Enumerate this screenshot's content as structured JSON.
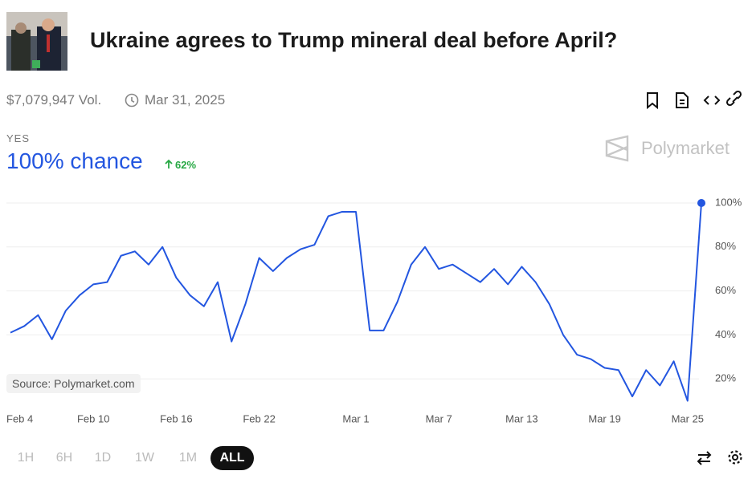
{
  "market": {
    "title": "Ukraine agrees to Trump mineral deal before April?",
    "volume": "$7,079,947 Vol.",
    "end_date": "Mar 31, 2025",
    "outcome": "YES",
    "chance": "100% chance",
    "change": "62%",
    "brand": "Polymarket",
    "source": "Source: Polymarket.com",
    "ranges": [
      "1H",
      "6H",
      "1D",
      "1W",
      "1M",
      "ALL"
    ],
    "selected_range": "ALL"
  },
  "chart_data": {
    "type": "line",
    "color": "#2356e0",
    "x": [
      "Feb 4",
      "Feb 5",
      "Feb 6",
      "Feb 7",
      "Feb 8",
      "Feb 9",
      "Feb 10",
      "Feb 11",
      "Feb 12",
      "Feb 13",
      "Feb 14",
      "Feb 15",
      "Feb 16",
      "Feb 17",
      "Feb 18",
      "Feb 19",
      "Feb 20",
      "Feb 21",
      "Feb 22",
      "Feb 23",
      "Feb 24",
      "Feb 25",
      "Feb 26",
      "Feb 27",
      "Feb 28",
      "Mar 1",
      "Mar 2",
      "Mar 3",
      "Mar 4",
      "Mar 5",
      "Mar 6",
      "Mar 7",
      "Mar 8",
      "Mar 9",
      "Mar 10",
      "Mar 11",
      "Mar 12",
      "Mar 13",
      "Mar 14",
      "Mar 15",
      "Mar 16",
      "Mar 17",
      "Mar 18",
      "Mar 19",
      "Mar 20",
      "Mar 21",
      "Mar 22",
      "Mar 23",
      "Mar 24",
      "Mar 25",
      "Mar 26"
    ],
    "values": [
      41,
      44,
      49,
      38,
      51,
      58,
      63,
      64,
      76,
      78,
      72,
      80,
      66,
      58,
      53,
      64,
      37,
      54,
      75,
      69,
      75,
      79,
      81,
      94,
      96,
      96,
      42,
      42,
      55,
      72,
      80,
      70,
      72,
      68,
      64,
      70,
      63,
      71,
      64,
      54,
      40,
      31,
      29,
      25,
      24,
      12,
      24,
      17,
      28,
      10,
      100
    ],
    "xticks": [
      "Feb 4",
      "Feb 10",
      "Feb 16",
      "Feb 22",
      "Mar 1",
      "Mar 7",
      "Mar 13",
      "Mar 19",
      "Mar 25"
    ],
    "ylim": [
      0,
      100
    ],
    "yticks": [
      {
        "value": 20,
        "label": "20%"
      },
      {
        "value": 40,
        "label": "40%"
      },
      {
        "value": 60,
        "label": "60%"
      },
      {
        "value": 80,
        "label": "80%"
      },
      {
        "value": 100,
        "label": "100%"
      }
    ],
    "grid": true
  }
}
